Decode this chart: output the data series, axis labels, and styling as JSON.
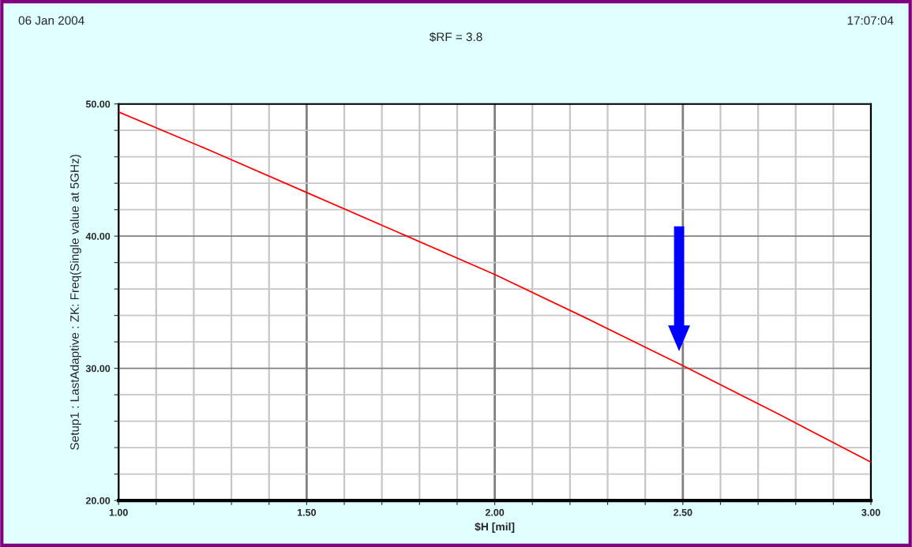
{
  "chart_data": {
    "type": "line",
    "title": "$RF = 3.8",
    "annotations": [
      "06 Jan 2004",
      "17:07:04"
    ],
    "xlabel": "$H [mil]",
    "ylabel": "Setup1 : LastAdaptive : ZK: Freq(Single value at 5GHz)",
    "x": [
      1.0,
      1.25,
      1.5,
      1.75,
      2.0,
      2.25,
      2.5,
      2.75,
      3.0
    ],
    "series": [
      {
        "color": "#ff0000",
        "values": [
          49.4,
          46.4,
          43.3,
          40.2,
          37.1,
          33.7,
          30.2,
          26.6,
          22.9
        ]
      }
    ],
    "xlim": [
      1.0,
      3.0
    ],
    "xticks": [
      {
        "value": 1.0,
        "label": "1.00"
      },
      {
        "value": 1.1,
        "label": null
      },
      {
        "value": 1.2,
        "label": null
      },
      {
        "value": 1.3,
        "label": null
      },
      {
        "value": 1.4,
        "label": null
      },
      {
        "value": 1.5,
        "label": "1.50"
      },
      {
        "value": 1.6,
        "label": null
      },
      {
        "value": 1.7,
        "label": null
      },
      {
        "value": 1.8,
        "label": null
      },
      {
        "value": 1.9,
        "label": null
      },
      {
        "value": 2.0,
        "label": "2.00"
      },
      {
        "value": 2.1,
        "label": null
      },
      {
        "value": 2.2,
        "label": null
      },
      {
        "value": 2.3,
        "label": null
      },
      {
        "value": 2.4,
        "label": null
      },
      {
        "value": 2.5,
        "label": "2.50"
      },
      {
        "value": 2.6,
        "label": null
      },
      {
        "value": 2.7,
        "label": null
      },
      {
        "value": 2.8,
        "label": null
      },
      {
        "value": 2.9,
        "label": null
      },
      {
        "value": 3.0,
        "label": "3.00"
      }
    ],
    "ylim": [
      20,
      50
    ],
    "yticks": [
      {
        "value": 20,
        "label": "20.00"
      },
      {
        "value": 22,
        "label": null
      },
      {
        "value": 24,
        "label": null
      },
      {
        "value": 26,
        "label": null
      },
      {
        "value": 28,
        "label": null
      },
      {
        "value": 30,
        "label": "30.00"
      },
      {
        "value": 32,
        "label": null
      },
      {
        "value": 34,
        "label": null
      },
      {
        "value": 36,
        "label": null
      },
      {
        "value": 38,
        "label": null
      },
      {
        "value": 40,
        "label": "40.00"
      },
      {
        "value": 42,
        "label": null
      },
      {
        "value": 44,
        "label": null
      },
      {
        "value": 46,
        "label": null
      },
      {
        "value": 48,
        "label": null
      },
      {
        "value": 50,
        "label": "50.00"
      }
    ],
    "grid": true,
    "legend": false
  }
}
